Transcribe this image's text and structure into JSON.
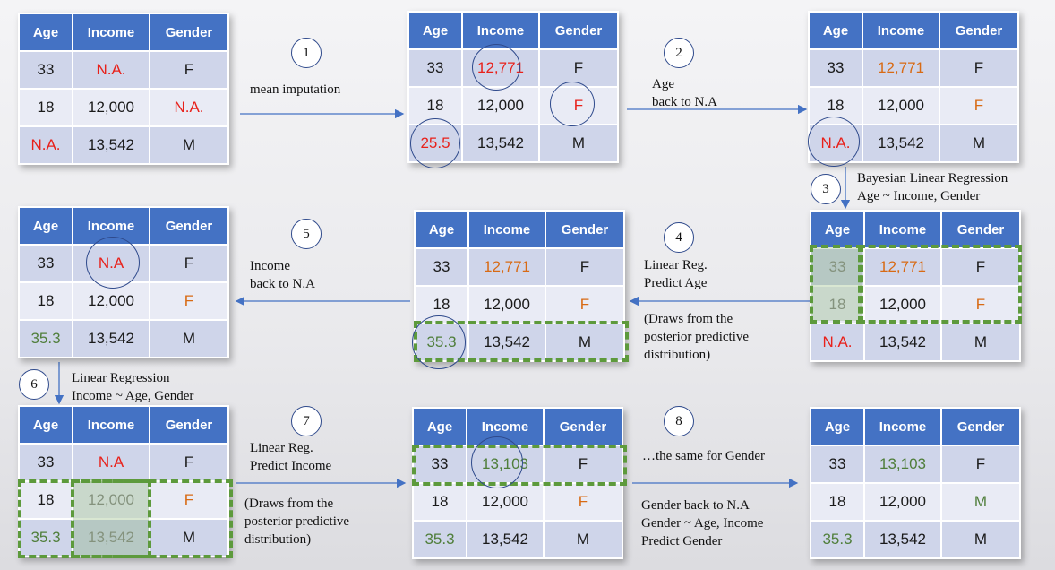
{
  "headers": [
    "Age",
    "Income",
    "Gender"
  ],
  "tables": {
    "t1": [
      [
        "33",
        "N.A.",
        "F"
      ],
      [
        "18",
        "12,000",
        "N.A."
      ],
      [
        "N.A.",
        "13,542",
        "M"
      ]
    ],
    "t2": [
      [
        "33",
        "12,771",
        "F"
      ],
      [
        "18",
        "12,000",
        "F"
      ],
      [
        "25.5",
        "13,542",
        "M"
      ]
    ],
    "t3": [
      [
        "33",
        "12,771",
        "F"
      ],
      [
        "18",
        "12,000",
        "F"
      ],
      [
        "N.A.",
        "13,542",
        "M"
      ]
    ],
    "t4": [
      [
        "33",
        "12,771",
        "F"
      ],
      [
        "18",
        "12,000",
        "F"
      ],
      [
        "N.A.",
        "13,542",
        "M"
      ]
    ],
    "t5": [
      [
        "33",
        "12,771",
        "F"
      ],
      [
        "18",
        "12,000",
        "F"
      ],
      [
        "35.3",
        "13,542",
        "M"
      ]
    ],
    "t6": [
      [
        "33",
        "N.A",
        "F"
      ],
      [
        "18",
        "12,000",
        "F"
      ],
      [
        "35.3",
        "13,542",
        "M"
      ]
    ],
    "t7": [
      [
        "33",
        "N.A",
        "F"
      ],
      [
        "18",
        "12,000",
        "F"
      ],
      [
        "35.3",
        "13,542",
        "M"
      ]
    ],
    "t8": [
      [
        "33",
        "13,103",
        "F"
      ],
      [
        "18",
        "12,000",
        "F"
      ],
      [
        "35.3",
        "13,542",
        "M"
      ]
    ],
    "t9": [
      [
        "33",
        "13,103",
        "F"
      ],
      [
        "18",
        "12,000",
        "M"
      ],
      [
        "35.3",
        "13,542",
        "M"
      ]
    ]
  },
  "steps": [
    "1",
    "2",
    "3",
    "4",
    "5",
    "6",
    "7",
    "8"
  ],
  "notes": {
    "s1": "mean imputation",
    "s2": "Age\nback to N.A",
    "s3": "Bayesian Linear Regression\nAge ~ Income, Gender",
    "s4a": "Linear Reg.\nPredict Age",
    "s4b": "(Draws from the\nposterior predictive\ndistribution)",
    "s5": "Income\nback to N.A",
    "s6": "Linear Regression\nIncome ~ Age, Gender",
    "s7a": "Linear Reg.\nPredict Income",
    "s7b": "(Draws from the\nposterior predictive\ndistribution)",
    "s8a": "…the same for Gender",
    "s8b": "Gender back to N.A\nGender ~ Age, Income\nPredict Gender"
  },
  "colors": {
    "header": "#4472c4",
    "missing": "#e8211b",
    "imputed": "#d86a14",
    "predicted": "#4f7e3a",
    "ring": "#2f4a8c",
    "dashed_box": "#5d9a3c"
  }
}
